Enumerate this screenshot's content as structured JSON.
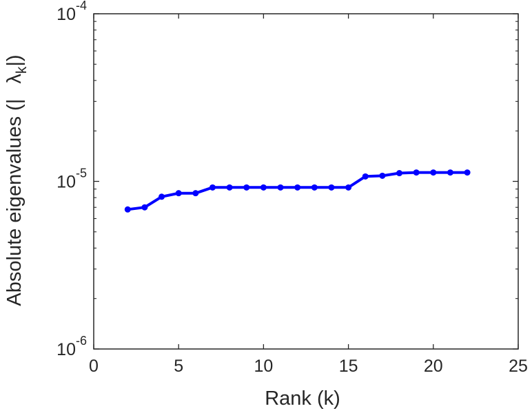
{
  "chart_data": {
    "type": "line",
    "title": "",
    "xlabel": "Rank (k)",
    "ylabel": {
      "main": "Absolute eigenvalues (|",
      "symbol": "λ",
      "subscript": "k",
      "close": "|)"
    },
    "xlim": [
      0,
      25
    ],
    "ylim": [
      1e-06,
      0.0001
    ],
    "yscale": "log",
    "grid": false,
    "line_color": "#0000ff",
    "x_ticks": [
      0,
      5,
      10,
      15,
      20,
      25
    ],
    "x_tick_labels": [
      "0",
      "5",
      "10",
      "15",
      "20",
      "25"
    ],
    "y_ticks": [
      {
        "value": 1e-06,
        "base": "10",
        "exponent": "-6"
      },
      {
        "value": 1e-05,
        "base": "10",
        "exponent": "-5"
      },
      {
        "value": 0.0001,
        "base": "10",
        "exponent": "-4"
      }
    ],
    "series": [
      {
        "x": [
          2,
          3,
          4,
          5,
          6,
          7,
          8,
          9,
          10,
          11,
          12,
          13,
          14,
          15,
          16,
          17,
          18,
          19,
          20,
          21,
          22
        ],
        "y": [
          6.8e-06,
          7e-06,
          8.1e-06,
          8.5e-06,
          8.5e-06,
          9.2e-06,
          9.2e-06,
          9.2e-06,
          9.2e-06,
          9.2e-06,
          9.2e-06,
          9.2e-06,
          9.2e-06,
          9.2e-06,
          1.07e-05,
          1.08e-05,
          1.12e-05,
          1.13e-05,
          1.13e-05,
          1.13e-05,
          1.13e-05
        ]
      }
    ]
  }
}
